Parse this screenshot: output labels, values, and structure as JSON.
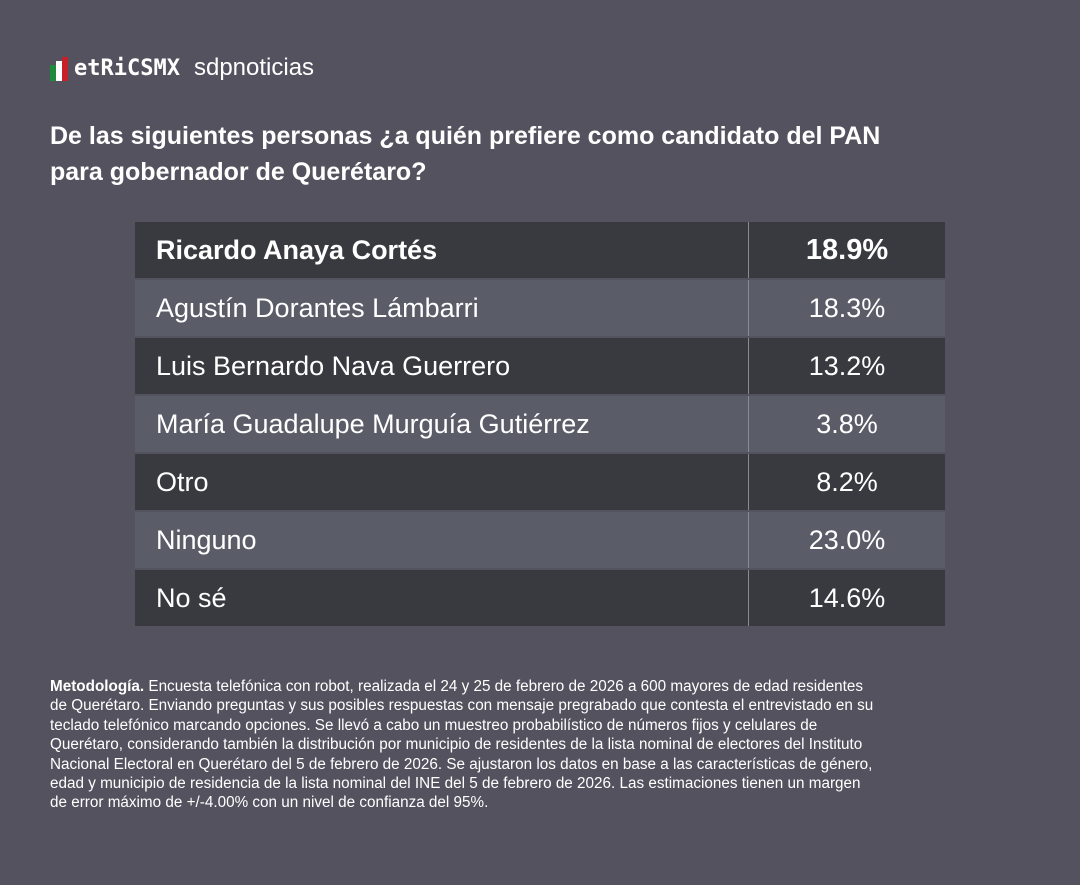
{
  "logo": {
    "brand": "etRiCSMX",
    "partner": "sdpnoticias",
    "colors": {
      "green": "#1e8a3c",
      "white": "#ffffff",
      "red": "#c8202a"
    }
  },
  "title": [
    "De las siguientes personas ¿a quién prefiere como candidato del PAN",
    "para gobernador de Querétaro?"
  ],
  "table": {
    "rows": [
      {
        "name": "Ricardo Anaya Cortés",
        "value": "18.9%"
      },
      {
        "name": "Agustín Dorantes Lámbarri",
        "value": "18.3%"
      },
      {
        "name": "Luis Bernardo Nava Guerrero",
        "value": "13.2%"
      },
      {
        "name": "María Guadalupe Murguía Gutiérrez",
        "value": "3.8%"
      },
      {
        "name": "Otro",
        "value": "8.2%"
      },
      {
        "name": "Ninguno",
        "value": "23.0%"
      },
      {
        "name": "No sé",
        "value": "14.6%"
      }
    ]
  },
  "methodology": {
    "label": "Metodología.",
    "lines": [
      " Encuesta telefónica con robot, realizada el 24 y 25 de febrero de 2026 a 600 mayores de edad residentes",
      "de Querétaro. Enviando preguntas y sus posibles respuestas con mensaje pregrabado que contesta el entrevistado en su",
      "teclado telefónico marcando opciones. Se llevó a cabo un muestreo probabilístico de números fijos y celulares de",
      "Querétaro, considerando también la distribución por municipio de residentes de la lista nominal de electores del Instituto",
      "Nacional Electoral en Querétaro del 5 de febrero de 2026. Se ajustaron los datos en base a las características de género,",
      "edad y municipio de residencia de la lista nominal del INE del 5 de febrero de 2026. Las estimaciones tienen un margen",
      "de error máximo de +/-4.00% con un nivel de confianza del 95%."
    ]
  }
}
